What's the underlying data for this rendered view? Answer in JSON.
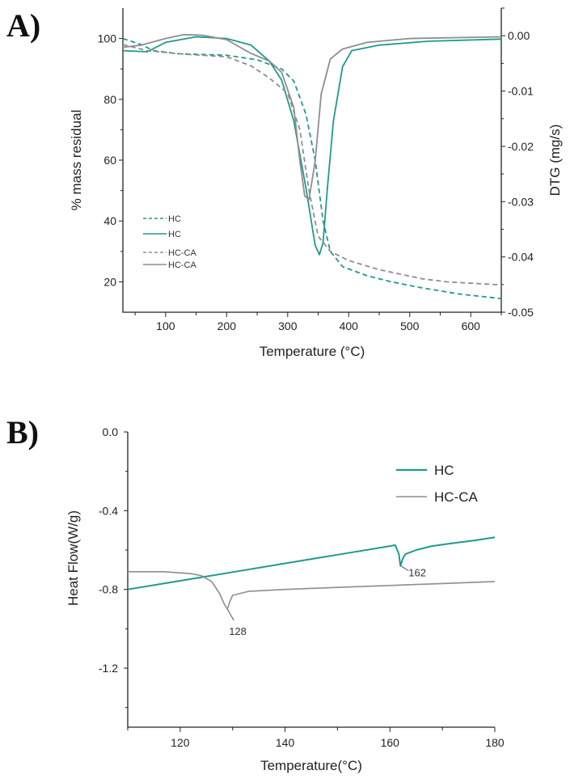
{
  "chart_data": [
    {
      "panel_label": "A)",
      "type": "line",
      "xlabel": "Temperature (°C)",
      "ylabel": "% mass residual",
      "y2label": "DTG (mg/s)",
      "xlim": [
        30,
        650
      ],
      "ylim": [
        10,
        110
      ],
      "y2lim": [
        -0.05,
        0.005
      ],
      "xticks": [
        100,
        200,
        300,
        400,
        500,
        600
      ],
      "yticks": [
        20,
        40,
        60,
        80,
        100
      ],
      "y2ticks": [
        "0.00",
        "-0.01",
        "-0.02",
        "-0.03",
        "-0.04",
        "-0.05"
      ],
      "grid": false,
      "legend_position": "bottom-left",
      "colors": {
        "HC": "#1f9a90",
        "HC-CA": "#8e8e8e"
      },
      "series": [
        {
          "name": "HC",
          "axis": "left",
          "style": "dashed",
          "color": "#1f9a90",
          "x": [
            30,
            60,
            80,
            120,
            200,
            250,
            290,
            310,
            330,
            345,
            358,
            370,
            390,
            430,
            470,
            520,
            580,
            650
          ],
          "y": [
            100,
            98,
            96,
            95,
            94.5,
            93,
            90,
            86,
            75,
            60,
            40,
            30,
            25,
            22,
            20,
            18,
            16,
            14.5
          ]
        },
        {
          "name": "HC",
          "axis": "right",
          "style": "solid",
          "color": "#1f9a90",
          "x": [
            30,
            70,
            100,
            150,
            200,
            240,
            270,
            290,
            310,
            330,
            345,
            352,
            358,
            365,
            375,
            390,
            405,
            450,
            530,
            650
          ],
          "y": [
            -0.0027,
            -0.0029,
            -0.0012,
            -0.0002,
            -0.0005,
            -0.0017,
            -0.0046,
            -0.008,
            -0.0154,
            -0.0276,
            -0.0379,
            -0.0396,
            -0.0374,
            -0.0276,
            -0.0154,
            -0.0056,
            -0.0027,
            -0.0017,
            -0.001,
            -0.0006
          ]
        },
        {
          "name": "HC-CA",
          "axis": "left",
          "style": "dashed",
          "color": "#8e8e8e",
          "x": [
            30,
            70,
            120,
            200,
            240,
            270,
            300,
            320,
            335,
            350,
            370,
            400,
            450,
            520,
            560,
            650
          ],
          "y": [
            98,
            96,
            95,
            94,
            91,
            87,
            82,
            70,
            50,
            35,
            30,
            27,
            24,
            21,
            20,
            19
          ]
        },
        {
          "name": "HC-CA",
          "axis": "right",
          "style": "solid",
          "color": "#8e8e8e",
          "x": [
            30,
            60,
            100,
            130,
            160,
            200,
            240,
            270,
            290,
            310,
            320,
            328,
            335,
            345,
            355,
            370,
            390,
            430,
            500,
            650
          ],
          "y": [
            -0.0021,
            -0.0017,
            -0.0005,
            0.0002,
            0.0001,
            -0.0007,
            -0.0032,
            -0.0046,
            -0.0066,
            -0.013,
            -0.0227,
            -0.029,
            -0.0296,
            -0.0227,
            -0.0105,
            -0.0042,
            -0.0024,
            -0.0012,
            -0.0005,
            -0.0002
          ]
        }
      ]
    },
    {
      "panel_label": "B)",
      "type": "line",
      "xlabel": "Temperature(°C)",
      "ylabel": "Heat Flow(W/g)",
      "xlim": [
        110,
        180
      ],
      "ylim": [
        -1.5,
        0.0
      ],
      "xticks": [
        120,
        140,
        160,
        180
      ],
      "yticks": [
        "0.0",
        "-0.4",
        "-0.8",
        "-1.2"
      ],
      "grid": false,
      "legend_position": "top-right",
      "series": [
        {
          "name": "HC",
          "color": "#1f9a90",
          "x": [
            110,
            120,
            130,
            140,
            150,
            160,
            161,
            161.7,
            162,
            162.5,
            163,
            165,
            168,
            172,
            176,
            180
          ],
          "y": [
            -0.8,
            -0.756,
            -0.712,
            -0.668,
            -0.624,
            -0.58,
            -0.575,
            -0.62,
            -0.68,
            -0.64,
            -0.62,
            -0.6,
            -0.58,
            -0.565,
            -0.552,
            -0.535
          ]
        },
        {
          "name": "HC-CA",
          "color": "#8e8e8e",
          "x": [
            110,
            117,
            122,
            124,
            126,
            127.5,
            128.5,
            129,
            129.5,
            130,
            133,
            140,
            150,
            160,
            170,
            180
          ],
          "y": [
            -0.71,
            -0.71,
            -0.72,
            -0.73,
            -0.76,
            -0.82,
            -0.88,
            -0.9,
            -0.86,
            -0.83,
            -0.81,
            -0.8,
            -0.79,
            -0.78,
            -0.77,
            -0.76
          ]
        }
      ],
      "annotations": [
        {
          "text": "128",
          "x": 129,
          "y": -0.9
        },
        {
          "text": "162",
          "x": 162,
          "y": -0.68
        }
      ]
    }
  ]
}
